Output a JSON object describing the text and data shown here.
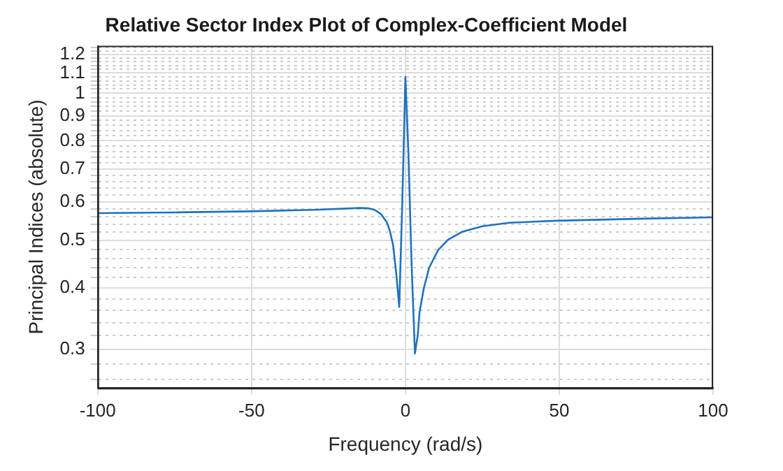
{
  "chart_data": {
    "type": "line",
    "title": "Relative Sector Index Plot of Complex-Coefficient Model",
    "xlabel": "Frequency (rad/s)",
    "ylabel": "Principal Indices (absolute)",
    "x": [
      -100,
      -75,
      -50,
      -30,
      -20,
      -15,
      -12,
      -10,
      -8,
      -6,
      -5,
      -4,
      -3,
      -2,
      -1,
      0,
      1,
      2,
      3.1,
      4,
      4.6,
      6,
      7.7,
      10.7,
      14,
      18.4,
      25,
      33.8,
      49.2,
      75,
      100
    ],
    "series": [
      {
        "color": "#1f72bd",
        "values": [
          0.569,
          0.571,
          0.574,
          0.578,
          0.581,
          0.583,
          0.582,
          0.578,
          0.567,
          0.545,
          0.522,
          0.49,
          0.43,
          0.366,
          0.6,
          1.08,
          0.75,
          0.45,
          0.294,
          0.32,
          0.357,
          0.4,
          0.44,
          0.479,
          0.503,
          0.521,
          0.535,
          0.544,
          0.549,
          0.554,
          0.558
        ]
      }
    ],
    "xlim": [
      -100,
      100
    ],
    "xticks": [
      -100,
      -50,
      0,
      50,
      100
    ],
    "ylim": [
      0.25,
      1.25
    ],
    "log": "y",
    "yticks": [
      {
        "value": 0.26,
        "label": null
      },
      {
        "value": 0.28,
        "label": null
      },
      0.3,
      {
        "value": 0.32,
        "label": null
      },
      {
        "value": 0.34,
        "label": null
      },
      {
        "value": 0.36,
        "label": null
      },
      {
        "value": 0.38,
        "label": null
      },
      0.4,
      {
        "value": 0.42,
        "label": null
      },
      {
        "value": 0.44,
        "label": null
      },
      {
        "value": 0.46,
        "label": null
      },
      {
        "value": 0.48,
        "label": null
      },
      0.5,
      {
        "value": 0.52,
        "label": null
      },
      {
        "value": 0.54,
        "label": null
      },
      {
        "value": 0.56,
        "label": null
      },
      {
        "value": 0.58,
        "label": null
      },
      0.6,
      {
        "value": 0.62,
        "label": null
      },
      {
        "value": 0.64,
        "label": null
      },
      {
        "value": 0.66,
        "label": null
      },
      {
        "value": 0.68,
        "label": null
      },
      0.7,
      {
        "value": 0.72,
        "label": null
      },
      {
        "value": 0.74,
        "label": null
      },
      {
        "value": 0.76,
        "label": null
      },
      {
        "value": 0.78,
        "label": null
      },
      0.8,
      {
        "value": 0.82,
        "label": null
      },
      {
        "value": 0.84,
        "label": null
      },
      {
        "value": 0.86,
        "label": null
      },
      {
        "value": 0.88,
        "label": null
      },
      0.9,
      {
        "value": 0.92,
        "label": null
      },
      {
        "value": 0.94,
        "label": null
      },
      {
        "value": 0.96,
        "label": null
      },
      {
        "value": 0.98,
        "label": null
      },
      1,
      {
        "value": 1.02,
        "label": null
      },
      {
        "value": 1.04,
        "label": null
      },
      {
        "value": 1.06,
        "label": null
      },
      {
        "value": 1.08,
        "label": null
      },
      1.1,
      {
        "value": 1.12,
        "label": null
      },
      {
        "value": 1.14,
        "label": null
      },
      {
        "value": 1.16,
        "label": null
      },
      {
        "value": 1.18,
        "label": null
      },
      1.2,
      {
        "value": 1.22,
        "label": null
      },
      {
        "value": 1.24,
        "label": null
      }
    ],
    "grid": true,
    "legend": false,
    "marker": "none",
    "line_style": "solid"
  }
}
